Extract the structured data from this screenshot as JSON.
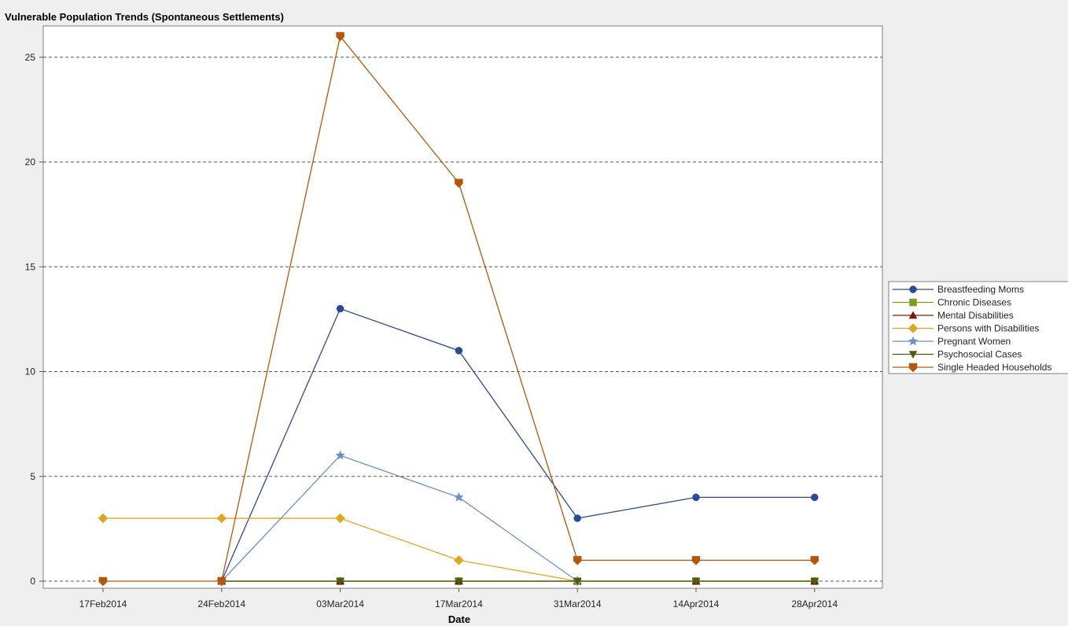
{
  "chart_data": {
    "type": "line",
    "title": "Vulnerable Population Trends (Spontaneous Settlements)",
    "xlabel": "Date",
    "ylabel": "",
    "x": [
      "17Feb2014",
      "24Feb2014",
      "03Mar2014",
      "17Mar2014",
      "31Mar2014",
      "14Apr2014",
      "28Apr2014"
    ],
    "ylim": [
      0,
      26
    ],
    "yticks": [
      0,
      5,
      10,
      15,
      20,
      25
    ],
    "grid": true,
    "legend_position": "right",
    "series": [
      {
        "name": "Breastfeeding Moms",
        "marker": "circle",
        "color": "#2a4a94",
        "values": [
          null,
          0,
          13,
          11,
          3,
          4,
          4
        ]
      },
      {
        "name": "Chronic Diseases",
        "marker": "square",
        "color": "#7d9c1f",
        "values": [
          null,
          0,
          0,
          0,
          0,
          0,
          0
        ]
      },
      {
        "name": "Mental Disabilities",
        "marker": "triangle-up",
        "color": "#7a1a08",
        "values": [
          null,
          0,
          0,
          0,
          0,
          0,
          0
        ]
      },
      {
        "name": "Persons with Disabilities",
        "marker": "diamond",
        "color": "#e0a623",
        "values": [
          3,
          3,
          3,
          1,
          0,
          null,
          null
        ]
      },
      {
        "name": "Pregnant Women",
        "marker": "star",
        "color": "#6b8fc7",
        "values": [
          null,
          0,
          6,
          4,
          0,
          null,
          null
        ]
      },
      {
        "name": "Psychosocial Cases",
        "marker": "triangle-down",
        "color": "#4b5e13",
        "values": [
          null,
          0,
          0,
          0,
          0,
          0,
          0
        ]
      },
      {
        "name": "Single Headed Households",
        "marker": "shield",
        "color": "#b4560b",
        "values": [
          0,
          0,
          26,
          19,
          1,
          1,
          1
        ]
      }
    ]
  }
}
